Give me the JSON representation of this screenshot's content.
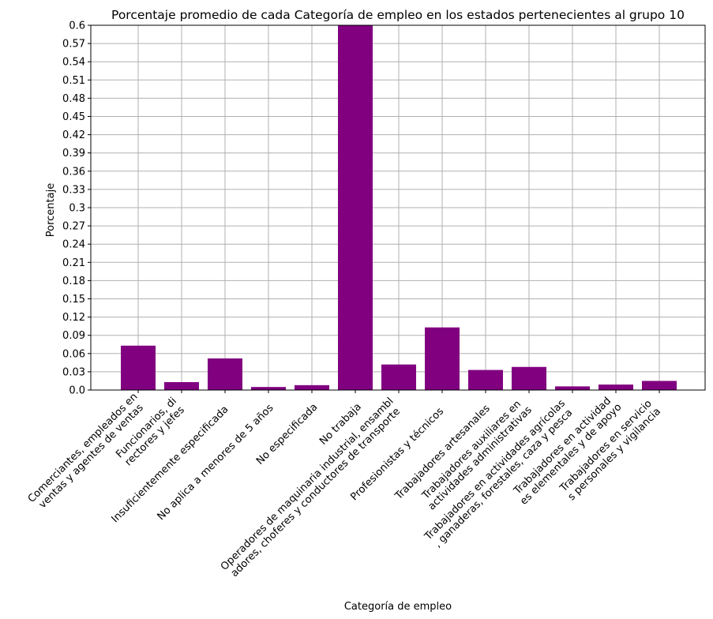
{
  "chart_data": {
    "type": "bar",
    "title": "Porcentaje promedio de cada Categoría de empleo en los estados pertenecientes al grupo 10",
    "xlabel": "Categoría de empleo",
    "ylabel": "Porcentaje",
    "ylim": [
      0,
      0.6
    ],
    "yticks": [
      "0.0",
      "0.03",
      "0.06",
      "0.09",
      "0.12",
      "0.15",
      "0.18",
      "0.21",
      "0.24",
      "0.27",
      "0.3",
      "0.33",
      "0.36",
      "0.39",
      "0.42",
      "0.45",
      "0.48",
      "0.51",
      "0.54",
      "0.57",
      "0.6"
    ],
    "grid": true,
    "bar_color": "#800080",
    "categories": [
      [
        "Comerciantes, empleados en",
        "ventas y agentes de ventas"
      ],
      [
        "Funcionarios, di",
        "rectores y jefes"
      ],
      [
        "Insuficientemente especificada"
      ],
      [
        "No aplica a menores de 5 años"
      ],
      [
        "No especificada"
      ],
      [
        "No trabaja"
      ],
      [
        "Operadores de maquinaria industrial, ensambl",
        "adores, choferes y conductores de transporte"
      ],
      [
        "Profesionistas y técnicos"
      ],
      [
        "Trabajadores artesanales"
      ],
      [
        "Trabajadores auxiliares en",
        "actividades administrativas"
      ],
      [
        "Trabajadores en actividades agrícolas",
        ", ganaderas, forestales, caza y pesca"
      ],
      [
        "Trabajadores en actividad",
        "es elementales y de apoyo"
      ],
      [
        "Trabajadores en servicio",
        "s personales y vigilancia"
      ]
    ],
    "values": [
      0.073,
      0.013,
      0.052,
      0.005,
      0.008,
      0.6,
      0.042,
      0.103,
      0.033,
      0.038,
      0.006,
      0.009,
      0.015
    ]
  }
}
